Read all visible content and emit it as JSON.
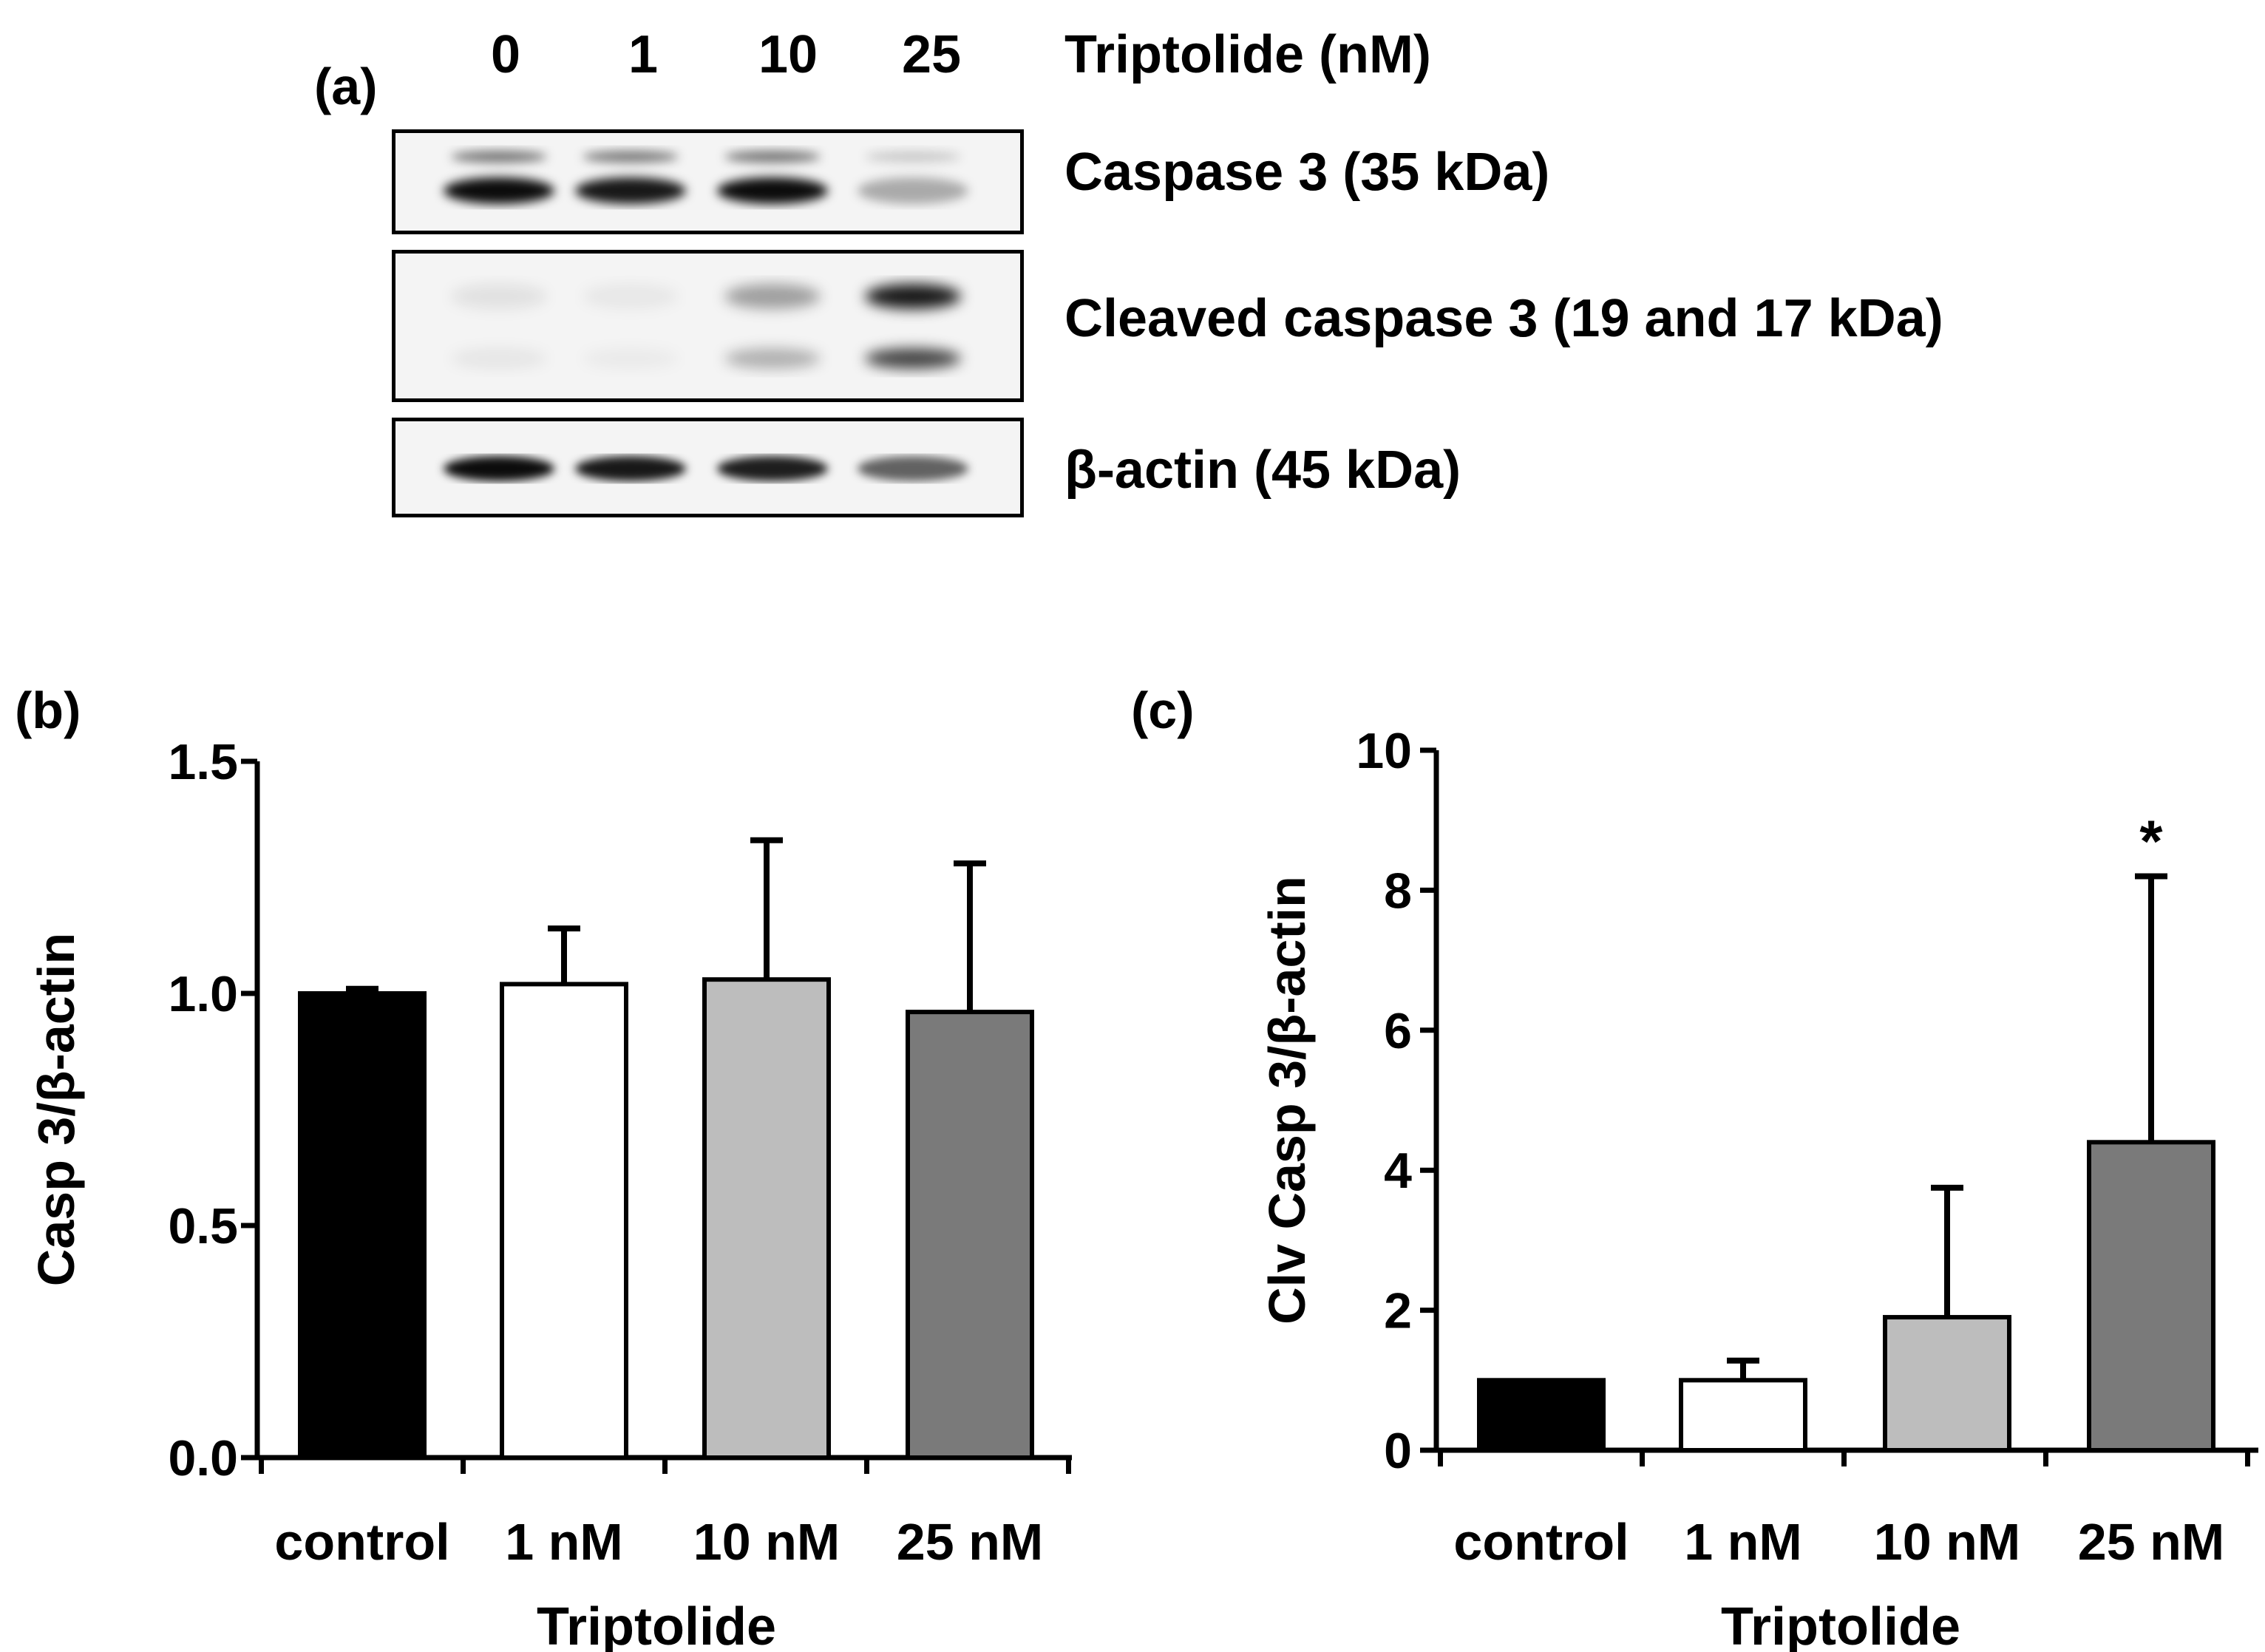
{
  "panel_a": {
    "label": "(a)",
    "concentrations": [
      "0",
      "1",
      "10",
      "25"
    ],
    "concentration_label": "Triptolide (nM)",
    "blots": [
      {
        "name": "Caspase 3 (35 kDa)",
        "intensities": [
          0.95,
          0.9,
          0.95,
          0.3
        ]
      },
      {
        "name": "Cleaved caspase 3 (19 and 17 kDa)",
        "intensities": [
          0.08,
          0.05,
          0.35,
          0.9
        ]
      },
      {
        "name": "β-actin (45 kDa)",
        "intensities": [
          0.95,
          0.9,
          0.88,
          0.6
        ]
      }
    ]
  },
  "chart_data": [
    {
      "panel": "(b)",
      "type": "bar",
      "categories": [
        "control",
        "1 nM",
        "10 nM",
        "25 nM"
      ],
      "values": [
        1.0,
        1.02,
        1.03,
        0.96
      ],
      "errors": [
        0.01,
        0.12,
        0.3,
        0.32
      ],
      "bar_colors": [
        "#000000",
        "#ffffff",
        "#bdbdbd",
        "#7a7a7a"
      ],
      "ylabel": "Casp 3/β-actin",
      "xlabel": "Triptolide",
      "ylim": [
        0,
        1.5
      ],
      "yticks": [
        "0.0",
        "0.5",
        "1.0",
        "1.5"
      ],
      "ytick_values": [
        0,
        0.5,
        1.0,
        1.5
      ],
      "annotations": []
    },
    {
      "panel": "(c)",
      "type": "bar",
      "categories": [
        "control",
        "1 nM",
        "10 nM",
        "25 nM"
      ],
      "values": [
        1.0,
        1.0,
        1.9,
        4.4
      ],
      "errors": [
        0,
        0.28,
        1.85,
        3.8
      ],
      "bar_colors": [
        "#000000",
        "#ffffff",
        "#bdbdbd",
        "#7a7a7a"
      ],
      "ylabel": "Clv Casp 3/β-actin",
      "xlabel": "Triptolide",
      "ylim": [
        0,
        10
      ],
      "yticks": [
        "0",
        "2",
        "4",
        "6",
        "8",
        "10"
      ],
      "ytick_values": [
        0,
        2,
        4,
        6,
        8,
        10
      ],
      "annotations": [
        {
          "category": "25 nM",
          "text": "*"
        }
      ]
    }
  ]
}
